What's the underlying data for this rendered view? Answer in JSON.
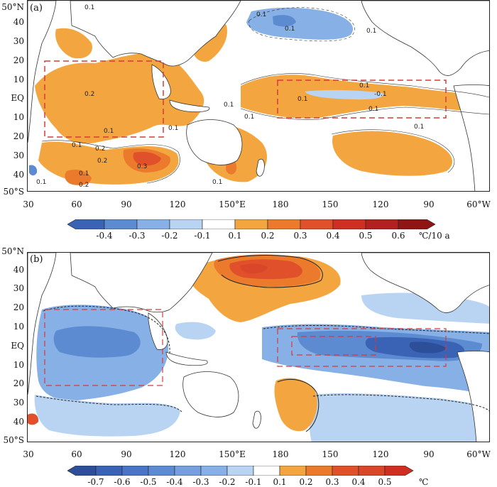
{
  "colors": {
    "neg4": "#3b63b5",
    "neg3": "#5d8bd1",
    "neg2": "#87b0e6",
    "neg1": "#b9d4f2",
    "pos1": "#ffffff",
    "pos2": "#f3a640",
    "pos3": "#eb7a2c",
    "pos4": "#e0502a",
    "pos5": "#cf2f22",
    "pos6": "#a81a1a",
    "land": "#ffffff",
    "coast": "#333333",
    "box": "#d83a3a"
  },
  "panel_a": {
    "label": "(a)",
    "lat_labels": [
      "50°N",
      "40",
      "30",
      "20",
      "10",
      "EQ",
      "10",
      "20",
      "30",
      "40",
      "50°S"
    ],
    "lon_labels": [
      "30",
      "60",
      "90",
      "120",
      "150°E",
      "180",
      "150",
      "120",
      "90",
      "60°W"
    ],
    "contour_labels": [
      "0.1",
      "0.1",
      "0.1",
      "0.1",
      "0.2",
      "0.1",
      "0.1",
      "0.1",
      "0.2",
      "0.2",
      "0.3",
      "0.1",
      "0.2",
      "0.1",
      "0.1",
      "0.1",
      "0.1",
      "0.1",
      "-0.1",
      "0.1",
      "0.1",
      "0.1"
    ],
    "colorbar": {
      "ticks": [
        "-0.4",
        "-0.3",
        "-0.2",
        "-0.1",
        "0.1",
        "0.2",
        "0.3",
        "0.4",
        "0.5",
        "0.6"
      ],
      "unit": "℃/10 a"
    }
  },
  "panel_b": {
    "label": "(b)",
    "lat_labels": [
      "50°N",
      "40",
      "30",
      "20",
      "10",
      "EQ",
      "10",
      "20",
      "30",
      "40",
      "50°S"
    ],
    "lon_labels": [
      "30",
      "60",
      "90",
      "120",
      "150°E",
      "180",
      "150",
      "120",
      "90",
      "60°W"
    ],
    "colorbar": {
      "ticks": [
        "-0.7",
        "-0.6",
        "-0.5",
        "-0.4",
        "-0.3",
        "-0.2",
        "-0.1",
        "0.1",
        "0.2",
        "0.3",
        "0.4",
        "0.5"
      ],
      "unit": "℃"
    }
  }
}
